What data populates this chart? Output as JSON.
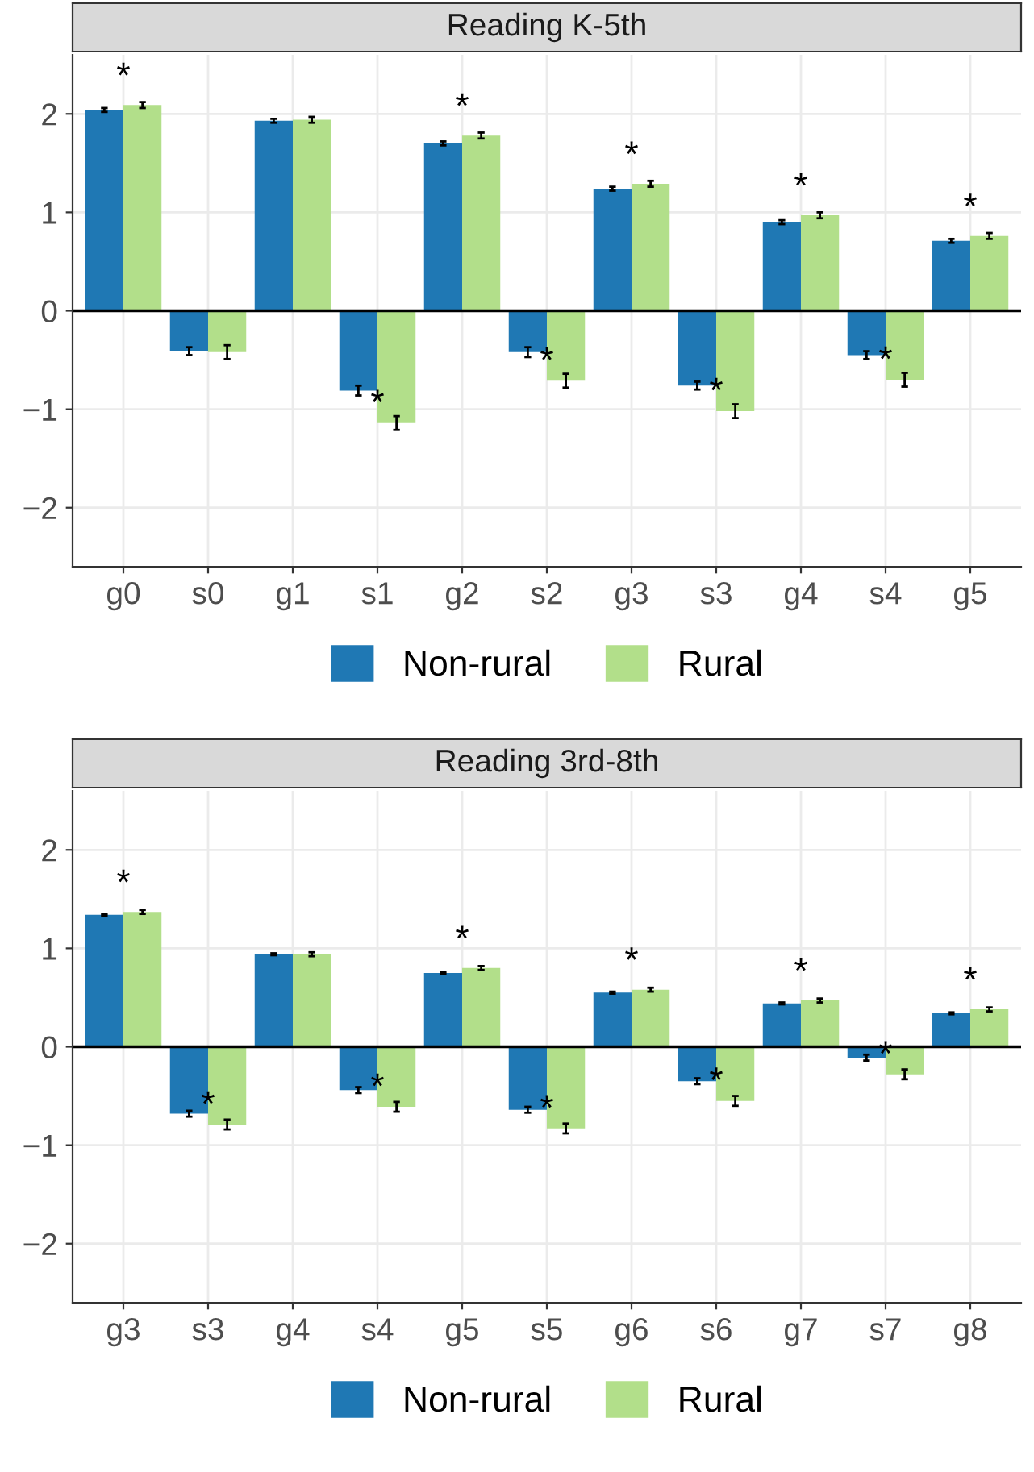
{
  "chart_data": [
    {
      "type": "bar",
      "title": "Reading K-5th",
      "categories": [
        "g0",
        "s0",
        "g1",
        "s1",
        "g2",
        "s2",
        "g3",
        "s3",
        "g4",
        "s4",
        "g5"
      ],
      "ylim": [
        -2.6,
        2.6
      ],
      "yticks": [
        -2,
        -1,
        0,
        1,
        2
      ],
      "grid": true,
      "legend": "bottom",
      "series": [
        {
          "name": "Non-rural",
          "color": "#1f78b4",
          "values": [
            2.04,
            -0.41,
            1.93,
            -0.81,
            1.7,
            -0.42,
            1.24,
            -0.76,
            0.9,
            -0.45,
            0.71
          ],
          "errors": [
            0.02,
            0.04,
            0.02,
            0.05,
            0.02,
            0.05,
            0.02,
            0.04,
            0.02,
            0.04,
            0.02
          ]
        },
        {
          "name": "Rural",
          "color": "#b2df8a",
          "values": [
            2.09,
            -0.42,
            1.94,
            -1.14,
            1.78,
            -0.71,
            1.29,
            -1.02,
            0.97,
            -0.7,
            0.76
          ],
          "errors": [
            0.03,
            0.07,
            0.03,
            0.07,
            0.03,
            0.07,
            0.03,
            0.07,
            0.03,
            0.07,
            0.03
          ]
        }
      ],
      "annotations": [
        {
          "text": "*",
          "x": "g0",
          "y": 2.09
        },
        {
          "text": "*",
          "x": "s1",
          "y": -1.14
        },
        {
          "text": "*",
          "x": "g2",
          "y": 1.78
        },
        {
          "text": "*",
          "x": "s2",
          "y": -0.71
        },
        {
          "text": "*",
          "x": "g3",
          "y": 1.29
        },
        {
          "text": "*",
          "x": "s3",
          "y": -1.02
        },
        {
          "text": "*",
          "x": "g4",
          "y": 0.97
        },
        {
          "text": "*",
          "x": "s4",
          "y": -0.7
        },
        {
          "text": "*",
          "x": "g5",
          "y": 0.76
        }
      ]
    },
    {
      "type": "bar",
      "title": "Reading 3rd-8th",
      "categories": [
        "g3",
        "s3",
        "g4",
        "s4",
        "g5",
        "s5",
        "g6",
        "s6",
        "g7",
        "s7",
        "g8"
      ],
      "ylim": [
        -2.6,
        2.6
      ],
      "yticks": [
        -2,
        -1,
        0,
        1,
        2
      ],
      "grid": true,
      "legend": "bottom",
      "series": [
        {
          "name": "Non-rural",
          "color": "#1f78b4",
          "values": [
            1.34,
            -0.68,
            0.94,
            -0.44,
            0.75,
            -0.64,
            0.55,
            -0.35,
            0.44,
            -0.11,
            0.34
          ],
          "errors": [
            0.01,
            0.03,
            0.01,
            0.03,
            0.01,
            0.03,
            0.01,
            0.03,
            0.01,
            0.03,
            0.01
          ]
        },
        {
          "name": "Rural",
          "color": "#b2df8a",
          "values": [
            1.37,
            -0.79,
            0.94,
            -0.61,
            0.8,
            -0.83,
            0.58,
            -0.55,
            0.47,
            -0.28,
            0.38
          ],
          "errors": [
            0.02,
            0.05,
            0.02,
            0.05,
            0.02,
            0.05,
            0.02,
            0.05,
            0.02,
            0.05,
            0.02
          ]
        }
      ],
      "annotations": [
        {
          "text": "*",
          "x": "g3",
          "y": 1.37
        },
        {
          "text": "*",
          "x": "s3",
          "y": -0.79
        },
        {
          "text": "*",
          "x": "s4",
          "y": -0.61
        },
        {
          "text": "*",
          "x": "g5",
          "y": 0.8
        },
        {
          "text": "*",
          "x": "s5",
          "y": -0.83
        },
        {
          "text": "*",
          "x": "g6",
          "y": 0.58
        },
        {
          "text": "*",
          "x": "s6",
          "y": -0.55
        },
        {
          "text": "*",
          "x": "g7",
          "y": 0.47
        },
        {
          "text": "*",
          "x": "s7",
          "y": -0.28
        },
        {
          "text": "*",
          "x": "g8",
          "y": 0.38
        }
      ]
    }
  ]
}
